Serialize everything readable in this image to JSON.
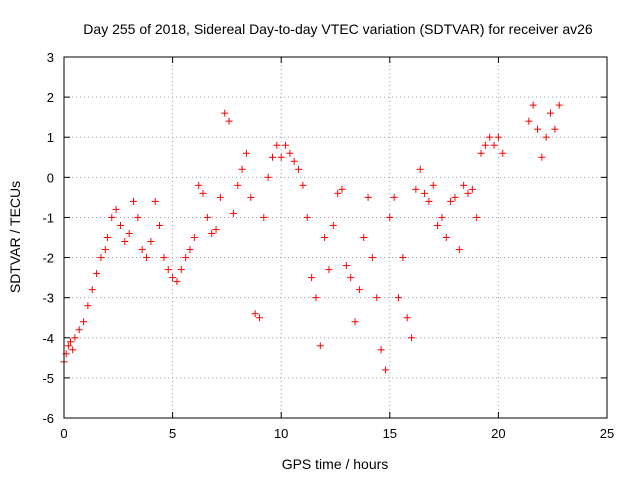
{
  "chart_data": {
    "type": "scatter",
    "title": "Day 255 of 2018, Sidereal Day-to-day VTEC variation (SDTVAR) for receiver av26",
    "xlabel": "GPS time / hours",
    "ylabel": "SDTVAR / TECUs",
    "xlim": [
      0,
      25
    ],
    "ylim": [
      -6,
      3
    ],
    "xticks": [
      "0",
      "5",
      "10",
      "15",
      "20",
      "25"
    ],
    "yticks": [
      "-6",
      "-5",
      "-4",
      "-3",
      "-2",
      "-1",
      "0",
      "1",
      "2",
      "3"
    ],
    "grid": true,
    "marker": "+",
    "color": "#ff0000",
    "series": [
      {
        "name": "SDTVAR",
        "x": [
          0.0,
          0.1,
          0.2,
          0.3,
          0.4,
          0.5,
          0.7,
          0.9,
          1.1,
          1.3,
          1.5,
          1.7,
          1.9,
          2.0,
          2.2,
          2.4,
          2.6,
          2.8,
          3.0,
          3.2,
          3.4,
          3.6,
          3.8,
          4.0,
          4.2,
          4.4,
          4.6,
          4.8,
          5.0,
          5.2,
          5.4,
          5.6,
          5.8,
          6.0,
          6.2,
          6.4,
          6.6,
          6.8,
          7.0,
          7.2,
          7.4,
          7.6,
          7.8,
          8.0,
          8.2,
          8.4,
          8.6,
          8.8,
          9.0,
          9.2,
          9.4,
          9.6,
          9.8,
          10.0,
          10.2,
          10.4,
          10.6,
          10.8,
          11.0,
          11.2,
          11.4,
          11.6,
          11.8,
          12.0,
          12.2,
          12.4,
          12.6,
          12.8,
          13.0,
          13.2,
          13.4,
          13.6,
          13.8,
          14.0,
          14.2,
          14.4,
          14.6,
          14.8,
          15.0,
          15.2,
          15.4,
          15.6,
          15.8,
          16.0,
          16.2,
          16.4,
          16.6,
          16.8,
          17.0,
          17.2,
          17.4,
          17.6,
          17.8,
          18.0,
          18.2,
          18.4,
          18.6,
          18.8,
          19.0,
          19.2,
          19.4,
          19.6,
          19.8,
          20.0,
          20.2,
          21.4,
          21.6,
          21.8,
          22.0,
          22.2,
          22.4,
          22.6,
          22.8
        ],
        "y": [
          -4.6,
          -4.4,
          -4.2,
          -4.1,
          -4.3,
          -4.0,
          -3.8,
          -3.6,
          -3.2,
          -2.8,
          -2.4,
          -2.0,
          -1.8,
          -1.5,
          -1.0,
          -0.8,
          -1.2,
          -1.6,
          -1.4,
          -0.6,
          -1.0,
          -1.8,
          -2.0,
          -1.6,
          -0.6,
          -1.2,
          -2.0,
          -2.3,
          -2.5,
          -2.6,
          -2.3,
          -2.0,
          -1.8,
          -1.5,
          -0.2,
          -0.4,
          -1.0,
          -1.4,
          -1.3,
          -0.5,
          1.6,
          1.4,
          -0.9,
          -0.2,
          0.2,
          0.6,
          -0.5,
          -3.4,
          -3.5,
          -1.0,
          0.0,
          0.5,
          0.8,
          0.5,
          0.8,
          0.6,
          0.4,
          0.2,
          -0.2,
          -1.0,
          -2.5,
          -3.0,
          -4.2,
          -1.5,
          -2.3,
          -1.2,
          -0.4,
          -0.3,
          -2.2,
          -2.5,
          -3.6,
          -2.8,
          -1.5,
          -0.5,
          -2.0,
          -3.0,
          -4.3,
          -4.8,
          -1.0,
          -0.5,
          -3.0,
          -2.0,
          -3.5,
          -4.0,
          -0.3,
          0.2,
          -0.4,
          -0.6,
          -0.2,
          -1.2,
          -1.0,
          -1.5,
          -0.6,
          -0.5,
          -1.8,
          -0.2,
          -0.4,
          -0.3,
          -1.0,
          0.6,
          0.8,
          1.0,
          0.8,
          1.0,
          0.6,
          1.4,
          1.8,
          1.2,
          0.5,
          1.0,
          1.6,
          1.2,
          1.8
        ]
      }
    ]
  }
}
